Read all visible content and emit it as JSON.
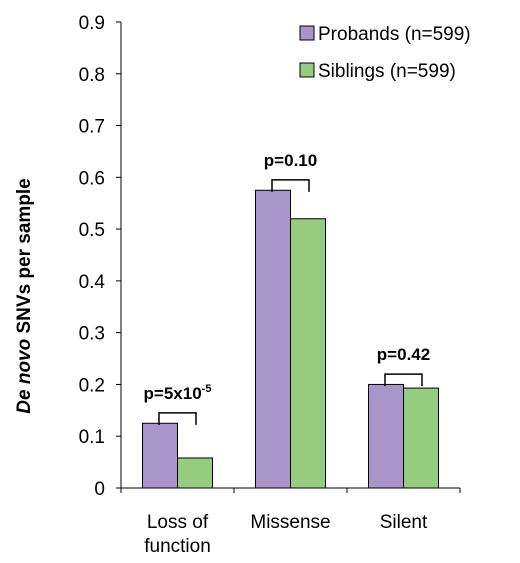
{
  "chart_data": {
    "type": "bar",
    "categories": [
      [
        "Loss of",
        "function"
      ],
      [
        "Missense"
      ],
      [
        "Silent"
      ]
    ],
    "series": [
      {
        "name": "Probands (n=599)",
        "color": "#a995c9",
        "values": [
          0.125,
          0.575,
          0.2
        ]
      },
      {
        "name": "Siblings (n=599)",
        "color": "#96cc80",
        "values": [
          0.058,
          0.52,
          0.193
        ]
      }
    ],
    "ylabel_italic": "De novo",
    "ylabel_rest": " SNVs per sample",
    "ylim": [
      0,
      0.9
    ],
    "yticks": [
      "0",
      "0.1",
      "0.2",
      "0.3",
      "0.4",
      "0.5",
      "0.6",
      "0.7",
      "0.8",
      "0.9"
    ],
    "annotations": [
      {
        "base": "p=5x10",
        "sup": "-5",
        "bracket_y": 0.145
      },
      {
        "base": "p=0.10",
        "sup": "",
        "bracket_y": 0.595
      },
      {
        "base": "p=0.42",
        "sup": "",
        "bracket_y": 0.22
      }
    ],
    "grid": false,
    "legend_position": "top-right"
  }
}
